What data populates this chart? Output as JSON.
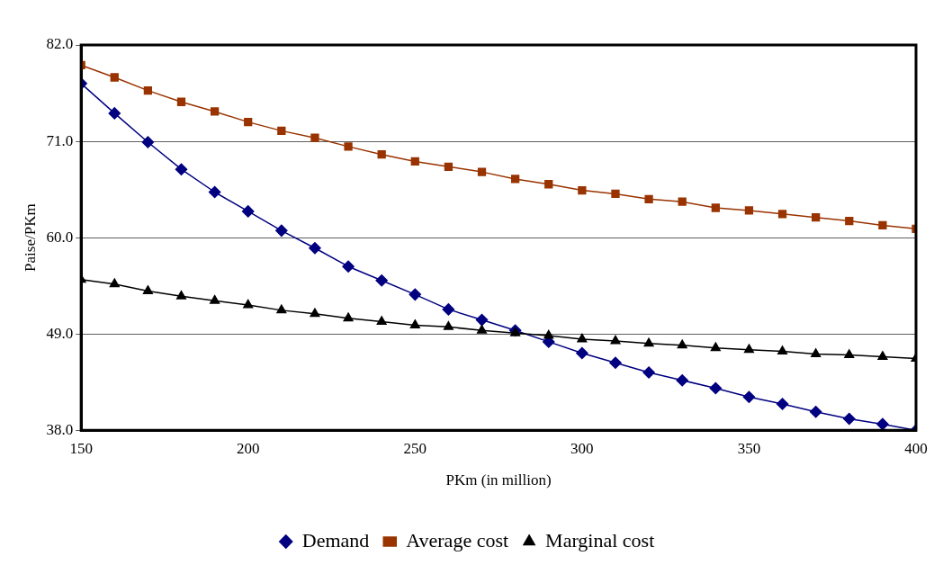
{
  "chart_data": {
    "type": "line",
    "xlabel": "PKm (in million)",
    "ylabel": "Paise/PKm",
    "x": [
      150,
      160,
      170,
      180,
      190,
      200,
      210,
      220,
      230,
      240,
      250,
      260,
      270,
      280,
      290,
      300,
      310,
      320,
      330,
      340,
      350,
      360,
      370,
      380,
      390,
      400
    ],
    "series": [
      {
        "name": "Demand",
        "color": "#000080",
        "marker": "diamond",
        "values": [
          77.6,
          74.2,
          70.9,
          67.8,
          65.2,
          63.0,
          60.8,
          58.8,
          56.7,
          55.1,
          53.5,
          51.8,
          50.6,
          49.4,
          48.1,
          46.8,
          45.7,
          44.6,
          43.7,
          42.8,
          41.8,
          41.0,
          40.1,
          39.3,
          38.7,
          38.0
        ]
      },
      {
        "name": "Average cost",
        "color": "#993300",
        "marker": "square",
        "values": [
          79.7,
          78.3,
          76.8,
          75.5,
          74.4,
          73.2,
          72.2,
          71.4,
          70.4,
          69.5,
          68.7,
          68.1,
          67.5,
          66.7,
          66.1,
          65.4,
          65.0,
          64.4,
          64.1,
          63.4,
          63.1,
          62.7,
          62.3,
          61.9,
          61.4,
          61.0
        ]
      },
      {
        "name": "Marginal cost",
        "color": "#000000",
        "marker": "triangle",
        "values": [
          55.2,
          54.7,
          53.9,
          53.3,
          52.8,
          52.3,
          51.7,
          51.3,
          50.8,
          50.4,
          50.0,
          49.8,
          49.4,
          49.1,
          48.8,
          48.4,
          48.2,
          47.9,
          47.7,
          47.4,
          47.2,
          47.0,
          46.7,
          46.6,
          46.4,
          46.2
        ]
      }
    ],
    "xlim": [
      150,
      400
    ],
    "xticks": [
      150,
      200,
      250,
      300,
      350,
      400
    ],
    "ylim": [
      38,
      82
    ],
    "yticks": [
      {
        "value": 38,
        "label": "38.0"
      },
      {
        "value": 49,
        "label": "49.0"
      },
      {
        "value": 60,
        "label": "60.0"
      },
      {
        "value": 71,
        "label": "71.0"
      },
      {
        "value": 82,
        "label": "82.0"
      }
    ],
    "grid": "y",
    "legend": "bottom"
  }
}
